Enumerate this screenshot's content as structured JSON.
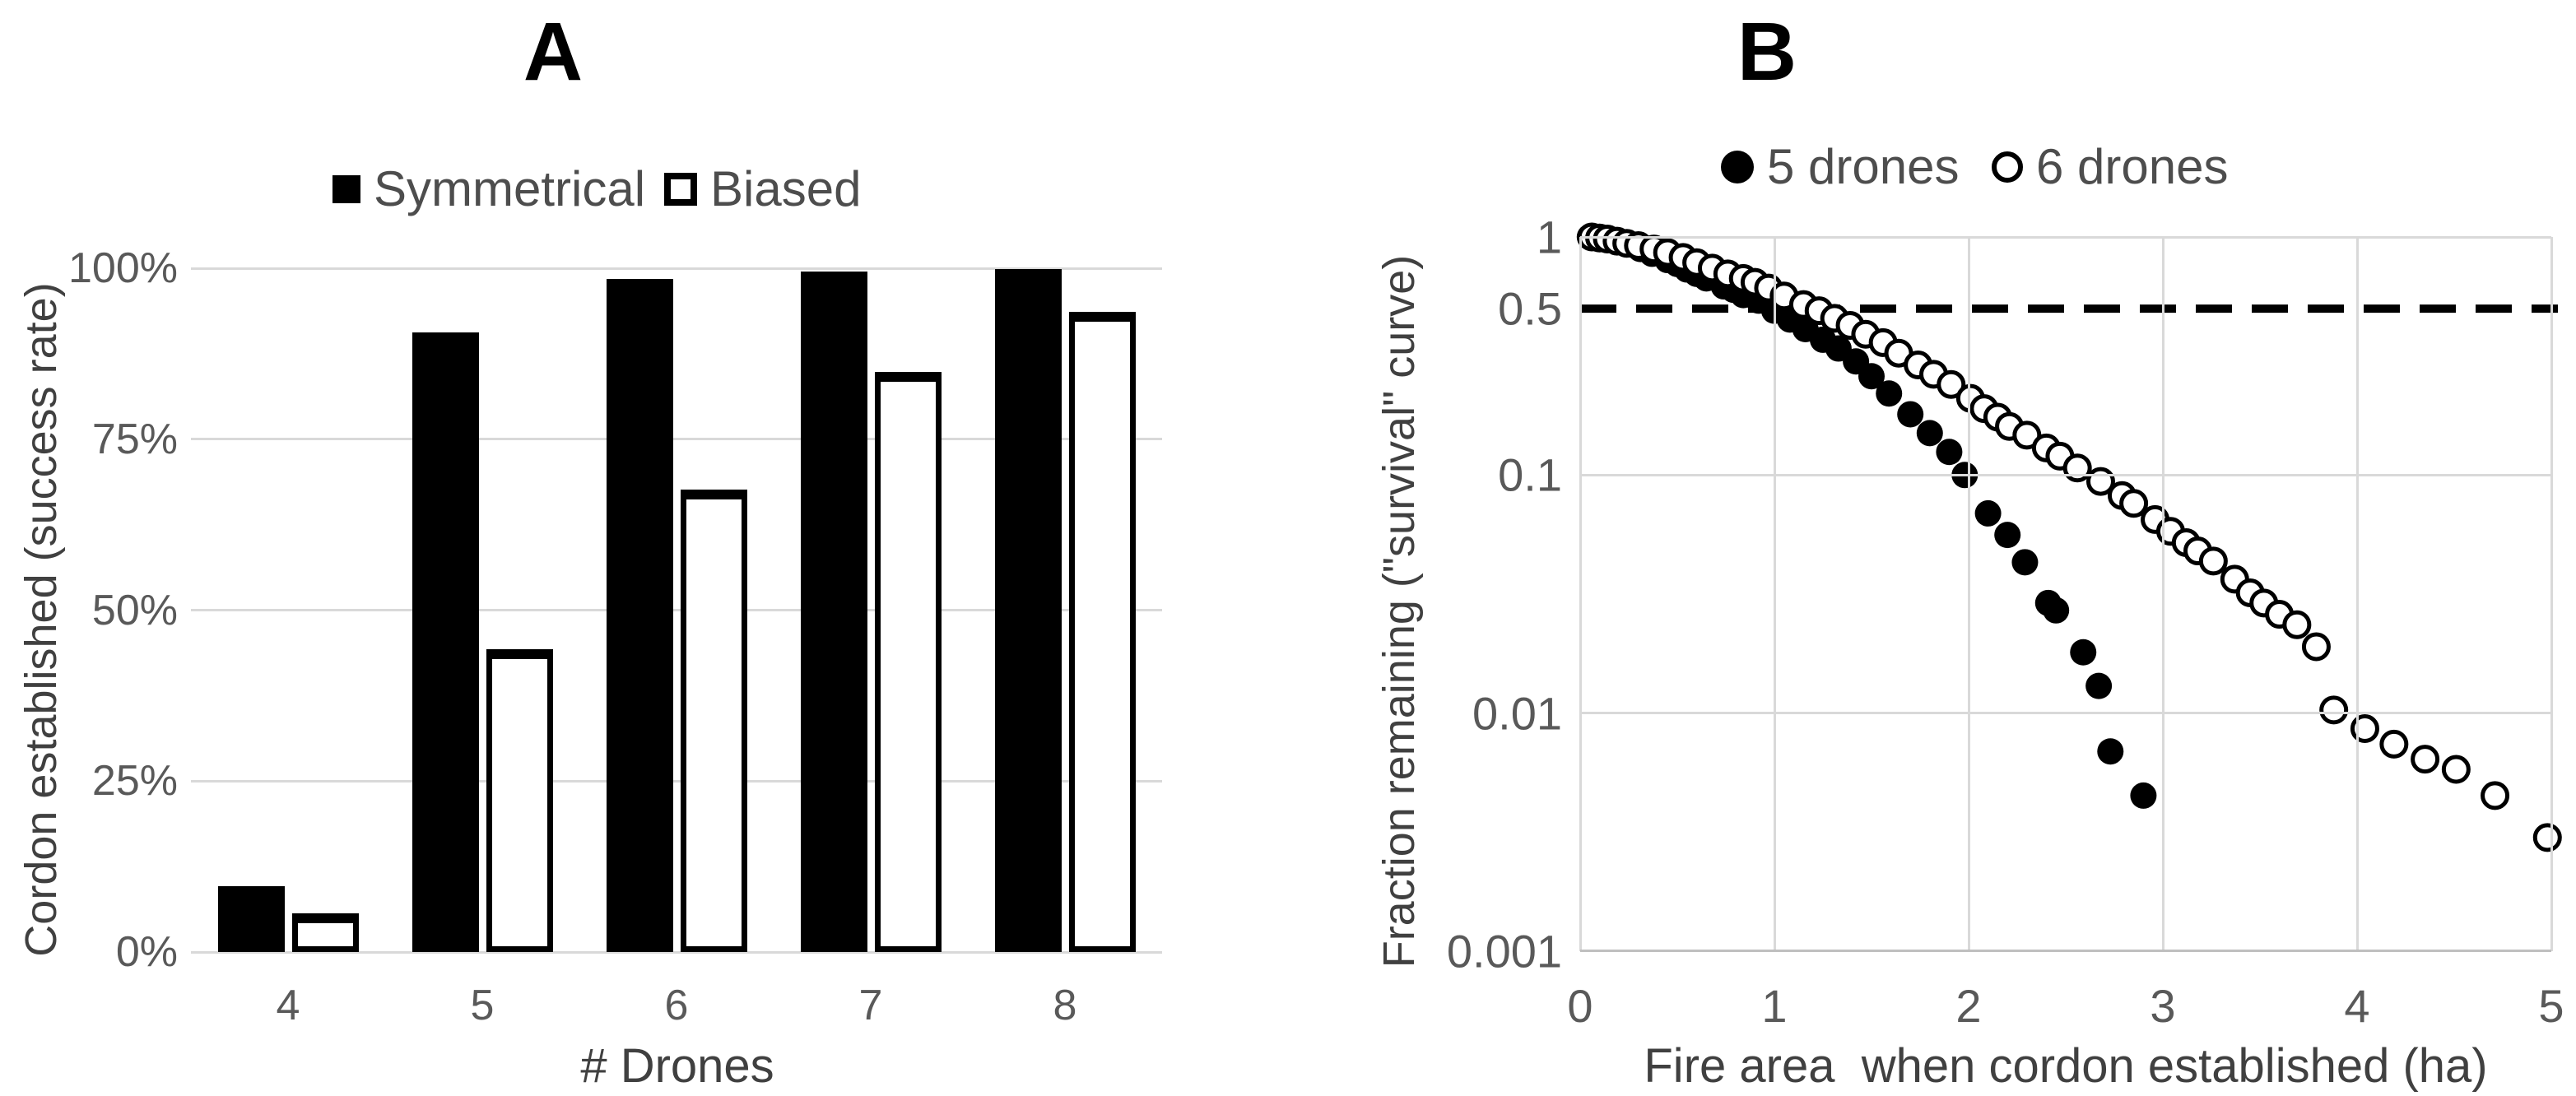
{
  "figure": {
    "background_color": "#ffffff",
    "text_color": "#595959",
    "title_color": "#000000",
    "gridline_color": "#d9d9d9",
    "axis_line_color": "#bfbfbf",
    "series_color": "#000000"
  },
  "chart_data": [
    {
      "type": "bar",
      "panel": "A",
      "title": "A",
      "xlabel": "# Drones",
      "ylabel": "Cordon established (success rate)",
      "categories": [
        "4",
        "5",
        "6",
        "7",
        "8"
      ],
      "series": [
        {
          "name": "Symmetrical",
          "swatch": "filled-square",
          "values": [
            9.6,
            90.6,
            98.4,
            99.5,
            99.9
          ]
        },
        {
          "name": "Biased",
          "swatch": "open-square",
          "values": [
            5.7,
            44.3,
            67.6,
            84.8,
            93.6
          ]
        }
      ],
      "unit": "%",
      "ylim": [
        0,
        100
      ],
      "yticks": [
        {
          "label": "100%",
          "value": 100
        },
        {
          "label": "75%",
          "value": 75
        },
        {
          "label": "50%",
          "value": 50
        },
        {
          "label": "25%",
          "value": 25
        },
        {
          "label": "0%",
          "value": 0
        }
      ],
      "grid": "horizontal",
      "legend_position": "top"
    },
    {
      "type": "scatter",
      "panel": "B",
      "title": "B",
      "xlabel": "Fire area  when cordon established (ha)",
      "ylabel": "Fraction remaining (\"survival\" curve)",
      "x_scale": "linear",
      "y_scale": "log10",
      "xlim": [
        0,
        5
      ],
      "ylim": [
        0.001,
        1
      ],
      "xticks": [
        {
          "label": "0",
          "value": 0
        },
        {
          "label": "1",
          "value": 1
        },
        {
          "label": "2",
          "value": 2
        },
        {
          "label": "3",
          "value": 3
        },
        {
          "label": "4",
          "value": 4
        },
        {
          "label": "5",
          "value": 5
        }
      ],
      "yticks": [
        {
          "label": "1",
          "value": 1,
          "grid": true
        },
        {
          "label": "0.5",
          "value": 0.5,
          "grid": false
        },
        {
          "label": "0.1",
          "value": 0.1,
          "grid": true
        },
        {
          "label": "0.01",
          "value": 0.01,
          "grid": true
        },
        {
          "label": "0.001",
          "value": 0.001,
          "grid": true
        }
      ],
      "reference_line": {
        "y": 0.5,
        "style": "dashed",
        "color": "#000000"
      },
      "grid": "both",
      "legend_position": "top",
      "series": [
        {
          "name": "5 drones",
          "swatch": "filled-circle",
          "marker": "filled-circle",
          "points": [
            [
              0.05,
              1.0
            ],
            [
              0.08,
              1.0
            ],
            [
              0.12,
              0.99
            ],
            [
              0.15,
              0.98
            ],
            [
              0.18,
              0.97
            ],
            [
              0.22,
              0.95
            ],
            [
              0.26,
              0.93
            ],
            [
              0.31,
              0.89
            ],
            [
              0.37,
              0.85
            ],
            [
              0.45,
              0.8
            ],
            [
              0.5,
              0.77
            ],
            [
              0.55,
              0.73
            ],
            [
              0.6,
              0.7
            ],
            [
              0.65,
              0.67
            ],
            [
              0.74,
              0.62
            ],
            [
              0.79,
              0.6
            ],
            [
              0.84,
              0.57
            ],
            [
              0.92,
              0.54
            ],
            [
              1.0,
              0.49
            ],
            [
              1.08,
              0.45
            ],
            [
              1.16,
              0.41
            ],
            [
              1.25,
              0.37
            ],
            [
              1.33,
              0.34
            ],
            [
              1.42,
              0.3
            ],
            [
              1.5,
              0.26
            ],
            [
              1.59,
              0.22
            ],
            [
              1.7,
              0.18
            ],
            [
              1.8,
              0.15
            ],
            [
              1.9,
              0.125
            ],
            [
              1.98,
              0.1
            ],
            [
              2.1,
              0.069
            ],
            [
              2.2,
              0.056
            ],
            [
              2.29,
              0.043
            ],
            [
              2.41,
              0.029
            ],
            [
              2.45,
              0.027
            ],
            [
              2.59,
              0.018
            ],
            [
              2.67,
              0.013
            ],
            [
              2.73,
              0.0069
            ],
            [
              2.9,
              0.0045
            ]
          ]
        },
        {
          "name": "6 drones",
          "swatch": "open-circle",
          "marker": "open-circle",
          "points": [
            [
              0.06,
              1.0
            ],
            [
              0.1,
              0.99
            ],
            [
              0.14,
              0.98
            ],
            [
              0.19,
              0.96
            ],
            [
              0.24,
              0.94
            ],
            [
              0.3,
              0.92
            ],
            [
              0.38,
              0.89
            ],
            [
              0.45,
              0.86
            ],
            [
              0.53,
              0.82
            ],
            [
              0.6,
              0.78
            ],
            [
              0.68,
              0.74
            ],
            [
              0.76,
              0.7
            ],
            [
              0.84,
              0.67
            ],
            [
              0.9,
              0.645
            ],
            [
              0.97,
              0.61
            ],
            [
              1.05,
              0.565
            ],
            [
              1.15,
              0.52
            ],
            [
              1.23,
              0.49
            ],
            [
              1.31,
              0.455
            ],
            [
              1.39,
              0.425
            ],
            [
              1.47,
              0.39
            ],
            [
              1.56,
              0.36
            ],
            [
              1.64,
              0.325
            ],
            [
              1.74,
              0.29
            ],
            [
              1.82,
              0.265
            ],
            [
              1.91,
              0.24
            ],
            [
              2.01,
              0.21
            ],
            [
              2.08,
              0.19
            ],
            [
              2.15,
              0.175
            ],
            [
              2.21,
              0.16
            ],
            [
              2.3,
              0.147
            ],
            [
              2.4,
              0.13
            ],
            [
              2.47,
              0.12
            ],
            [
              2.56,
              0.107
            ],
            [
              2.68,
              0.094
            ],
            [
              2.79,
              0.082
            ],
            [
              2.85,
              0.076
            ],
            [
              2.96,
              0.065
            ],
            [
              3.04,
              0.058
            ],
            [
              3.12,
              0.052
            ],
            [
              3.18,
              0.048
            ],
            [
              3.26,
              0.0435
            ],
            [
              3.37,
              0.0365
            ],
            [
              3.45,
              0.032
            ],
            [
              3.52,
              0.029
            ],
            [
              3.6,
              0.026
            ],
            [
              3.69,
              0.0235
            ],
            [
              3.79,
              0.019
            ],
            [
              3.88,
              0.0103
            ],
            [
              4.04,
              0.0086
            ],
            [
              4.19,
              0.0074
            ],
            [
              4.35,
              0.0064
            ],
            [
              4.51,
              0.0058
            ],
            [
              4.71,
              0.0045
            ],
            [
              4.98,
              0.003
            ]
          ]
        }
      ]
    }
  ]
}
